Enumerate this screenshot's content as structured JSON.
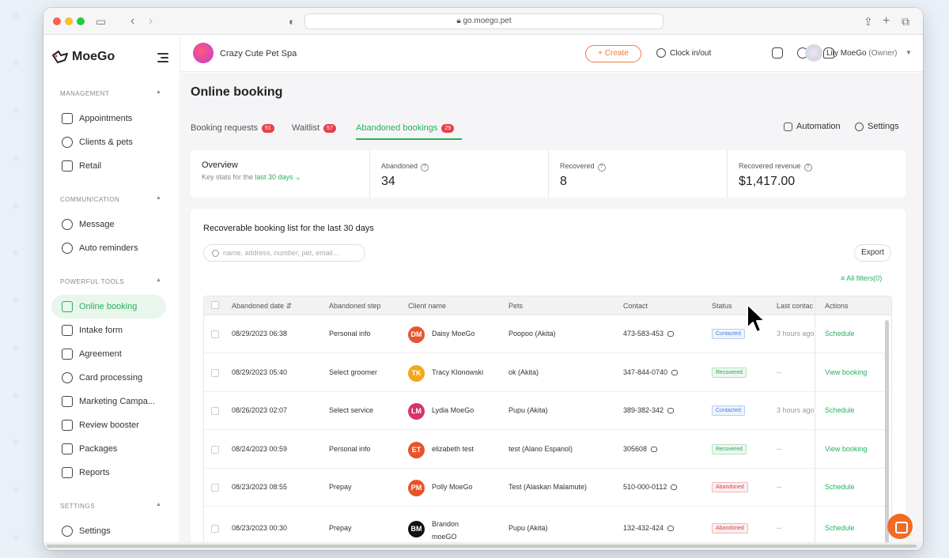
{
  "browser": {
    "url": "go.moego.pet"
  },
  "app": {
    "logo_text": "MoeGo"
  },
  "sidebar": {
    "sections": [
      {
        "title": "MANAGEMENT",
        "items": [
          "Appointments",
          "Clients & pets",
          "Retail"
        ]
      },
      {
        "title": "COMMUNICATION",
        "items": [
          "Message",
          "Auto reminders"
        ]
      },
      {
        "title": "POWERFUL TOOLS",
        "items": [
          "Online booking",
          "Intake form",
          "Agreement",
          "Card processing",
          "Marketing Campa...",
          "Review booster",
          "Packages",
          "Reports"
        ]
      },
      {
        "title": "SETTINGS",
        "items": [
          "Settings"
        ]
      }
    ],
    "active_item": "Online booking"
  },
  "header": {
    "business_name": "Crazy Cute Pet Spa",
    "create_label": "+ Create",
    "clock_label": "Clock in/out",
    "user_name": "Lily MoeGo",
    "user_role": "(Owner)"
  },
  "page": {
    "title": "Online booking",
    "tabs": [
      {
        "label": "Booking requests",
        "count": "51"
      },
      {
        "label": "Waitlist",
        "count": "57"
      },
      {
        "label": "Abandoned bookings",
        "count": "29"
      }
    ],
    "active_tab": "Abandoned bookings",
    "automation_label": "Automation",
    "settings_label": "Settings"
  },
  "overview": {
    "label": "Overview",
    "sub": "Key stats for the",
    "range": "last 30 days",
    "stats": [
      {
        "label": "Abandoned",
        "value": "34"
      },
      {
        "label": "Recovered",
        "value": "8"
      },
      {
        "label": "Recovered revenue",
        "value": "$1,417.00"
      }
    ]
  },
  "list": {
    "title": "Recoverable booking list for the last 30 days",
    "search_placeholder": "name, address, number, pet, email...",
    "export_label": "Export",
    "filters_label": "All filters(0)",
    "columns": [
      "Abandoned date",
      "Abandoned step",
      "Client name",
      "Pets",
      "Contact",
      "Status",
      "Last contac",
      "Actions"
    ],
    "rows": [
      {
        "date": "08/29/2023 06:38",
        "step": "Personal info",
        "initials": "DM",
        "avatar_color": "#e4572e",
        "client": "Daisy MoeGo",
        "pets": "Poopoo (Akita)",
        "contact": "473-583-453",
        "status": "Contacted",
        "last_contact": "3 hours ago",
        "action": "Schedule"
      },
      {
        "date": "08/29/2023 05:40",
        "step": "Select groomer",
        "initials": "TK",
        "avatar_color": "#f2a81d",
        "client": "Tracy Klonowski",
        "pets": "ok (Akita)",
        "contact": "347-844-0740",
        "status": "Recovered",
        "last_contact": "--",
        "action": "View booking"
      },
      {
        "date": "08/26/2023 02:07",
        "step": "Select service",
        "initials": "LM",
        "avatar_color": "#d6336c",
        "client": "Lydia MoeGo",
        "pets": "Pupu (Akita)",
        "contact": "389-382-342",
        "status": "Contacted",
        "last_contact": "3 hours ago",
        "action": "Schedule"
      },
      {
        "date": "08/24/2023 00:59",
        "step": "Personal info",
        "initials": "ET",
        "avatar_color": "#e8542a",
        "client": "elizabeth test",
        "pets": "test (Alano Espanol)",
        "contact": "305608",
        "status": "Recovered",
        "last_contact": "--",
        "action": "View booking"
      },
      {
        "date": "08/23/2023 08:55",
        "step": "Prepay",
        "initials": "PM",
        "avatar_color": "#e8542a",
        "client": "Polly MoeGo",
        "pets": "Test (Alaskan Malamute)",
        "contact": "510-000-0112",
        "status": "Abandoned",
        "last_contact": "--",
        "action": "Schedule"
      },
      {
        "date": "08/23/2023 00:30",
        "step": "Prepay",
        "initials": "BM",
        "avatar_color": "#111111",
        "client": "Brandon moeGO",
        "pets": "Pupu (Akita)",
        "contact": "132-432-424",
        "status": "Abandoned",
        "last_contact": "--",
        "action": "Schedule"
      }
    ]
  },
  "colors": {
    "accent": "#29b05c",
    "brand_orange": "#f07a3e",
    "badge_red": "#e5404a"
  }
}
